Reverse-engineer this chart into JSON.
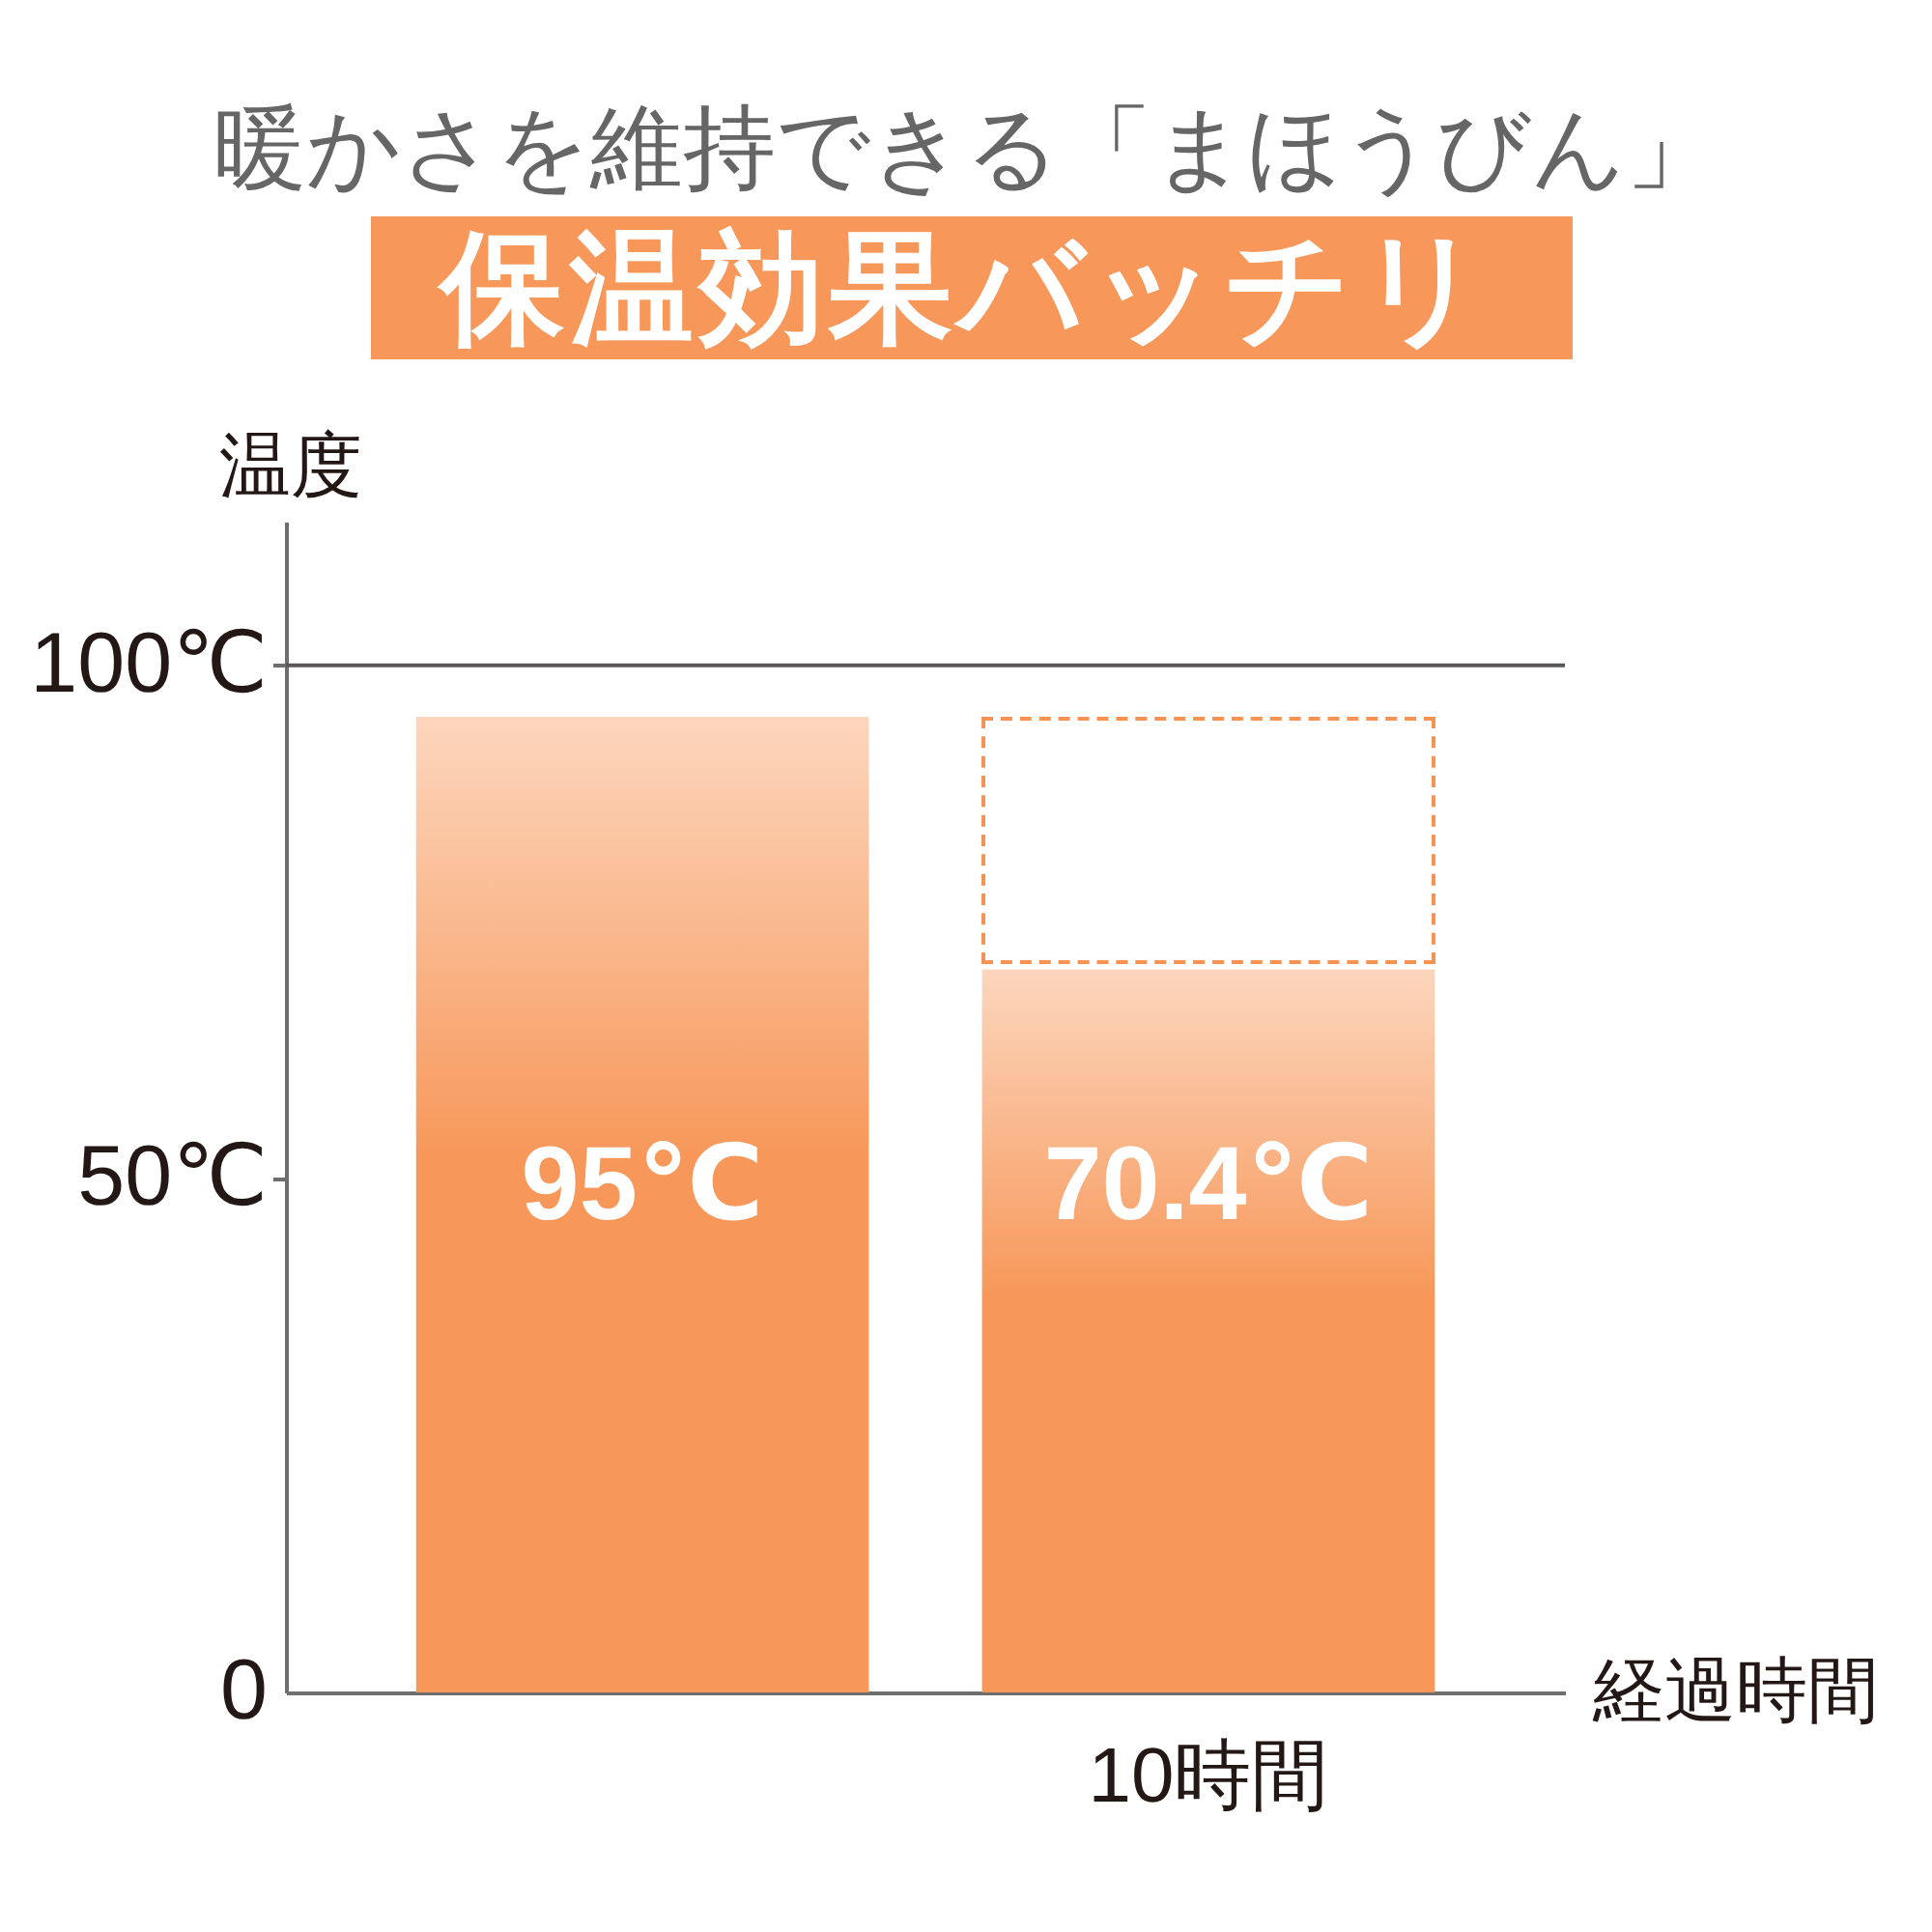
{
  "chart_data": {
    "type": "bar",
    "title": "暖かさを維持できる「まほうびん」",
    "subtitle": "保温効果バッチリ",
    "xlabel": "経過時間",
    "ylabel": "温度",
    "categories": [
      null,
      "10時間"
    ],
    "values": [
      95,
      70.4
    ],
    "color": "#f7985a",
    "value_labels": [
      "95℃",
      "70.4℃"
    ],
    "ylim": [
      0,
      114
    ],
    "yticks": [
      0,
      {
        "value": 50,
        "label": "50℃"
      },
      {
        "value": 100,
        "label": "100℃"
      }
    ],
    "ref_lines": [
      {
        "axis": "y",
        "value": 100,
        "color": "#595757"
      }
    ]
  }
}
